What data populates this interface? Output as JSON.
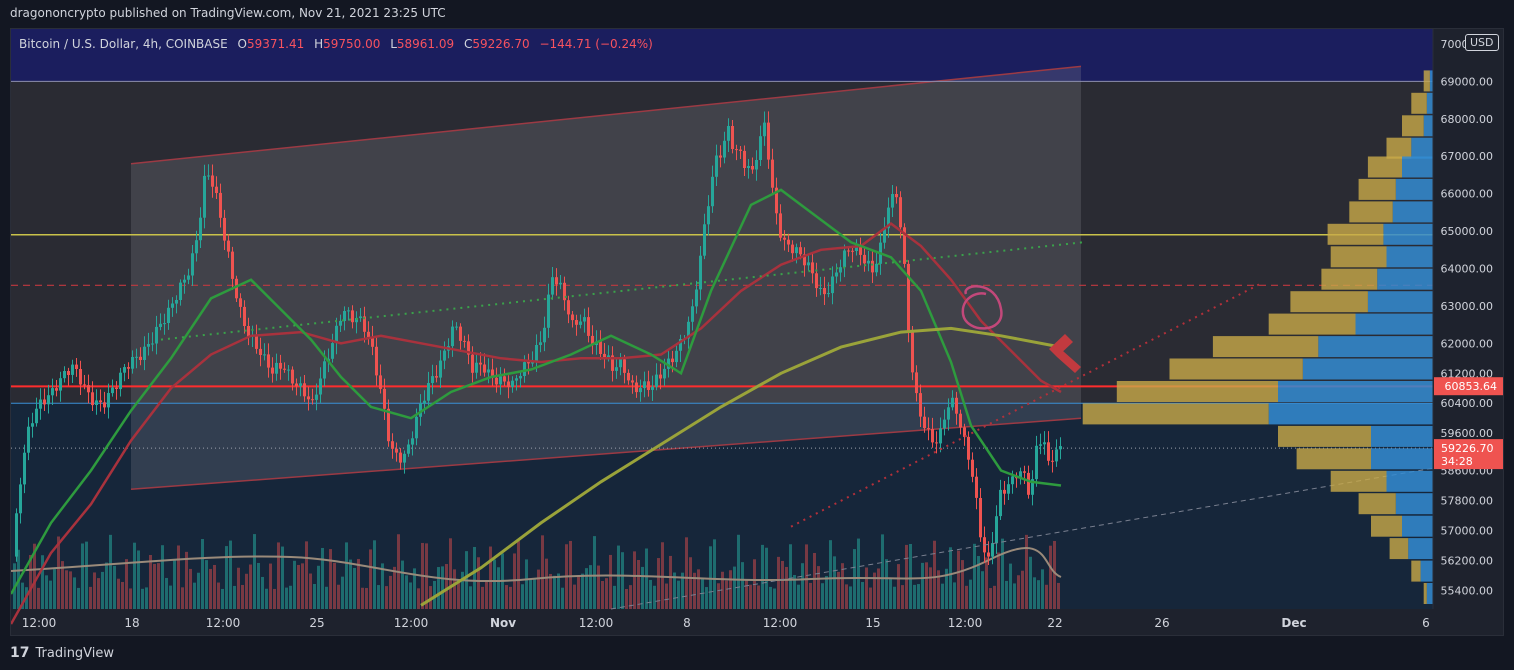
{
  "attribution": "dragononcrypto published on TradingView.com, Nov 21, 2021 23:25 UTC",
  "brand": {
    "logo_glyph": "17",
    "name": "TradingView"
  },
  "symbol_bar": {
    "symbol": "Bitcoin / U.S. Dollar, 4h, COINBASE",
    "o_label": "O",
    "o_value": "59371.41",
    "h_label": "H",
    "h_value": "59750.00",
    "l_label": "L",
    "l_value": "58961.09",
    "c_label": "C",
    "c_value": "59226.70",
    "change": "−144.71 (−0.24%)"
  },
  "currency_badge": "USD",
  "colors": {
    "bg": "#1e222d",
    "up": "#26a69a",
    "down": "#ef5350",
    "sma_green": "#2e9b3e",
    "ema_red": "#a8323d",
    "ema_olive": "#9aa33a",
    "yellow_line": "#c9c24a",
    "red_line": "#ff2d2d",
    "blue_line": "#3a8fd6",
    "price_label": "#ef5350",
    "last_label": "#ef5350"
  },
  "chart_data": {
    "type": "candlestick",
    "symbol": "Bitcoin / U.S. Dollar",
    "timeframe": "4h",
    "exchange": "COINBASE",
    "ohlc": {
      "open": 59371.41,
      "high": 59750.0,
      "low": 58961.09,
      "close": 59226.7,
      "change": -144.71,
      "change_pct": -0.24
    },
    "y_range": [
      54900,
      70400
    ],
    "y_ticks": [
      "70000.00",
      "69000.00",
      "68000.00",
      "67000.00",
      "66000.00",
      "65000.00",
      "64000.00",
      "63000.00",
      "62000.00",
      "61200.00",
      "60400.00",
      "59600.00",
      "58600.00",
      "57800.00",
      "57000.00",
      "56200.00",
      "55400.00"
    ],
    "x_ticks": [
      "12:00",
      "18",
      "12:00",
      "25",
      "12:00",
      "Nov",
      "12:00",
      "8",
      "12:00",
      "15",
      "12:00",
      "22",
      "26",
      "Dec",
      "6"
    ],
    "current_price_label": {
      "price": "59226.70",
      "countdown": "34:28"
    },
    "horizontal_level_label": "60853.64",
    "horizontal_levels": [
      {
        "name": "purple-resistance",
        "price": 69000
      },
      {
        "name": "yellow-level",
        "price": 64900
      },
      {
        "name": "dashed-red-level",
        "price": 63550
      },
      {
        "name": "red-level",
        "price": 60850
      },
      {
        "name": "blue-level",
        "price": 60400
      },
      {
        "name": "dotted-last",
        "price": 59200
      }
    ],
    "price_path": [
      [
        0,
        56300
      ],
      [
        8,
        58200
      ],
      [
        15,
        59400
      ],
      [
        22,
        60100
      ],
      [
        30,
        60600
      ],
      [
        45,
        61000
      ],
      [
        60,
        61200
      ],
      [
        75,
        60700
      ],
      [
        90,
        60500
      ],
      [
        105,
        60800
      ],
      [
        115,
        61300
      ],
      [
        125,
        61700
      ],
      [
        135,
        62100
      ],
      [
        145,
        62400
      ],
      [
        155,
        62600
      ],
      [
        162,
        63000
      ],
      [
        170,
        63600
      ],
      [
        178,
        64200
      ],
      [
        186,
        65200
      ],
      [
        193,
        66600
      ],
      [
        198,
        66400
      ],
      [
        205,
        65600
      ],
      [
        212,
        64700
      ],
      [
        220,
        63800
      ],
      [
        228,
        63000
      ],
      [
        236,
        62400
      ],
      [
        244,
        61900
      ],
      [
        252,
        61400
      ],
      [
        260,
        61100
      ],
      [
        270,
        61500
      ],
      [
        280,
        61200
      ],
      [
        290,
        60800
      ],
      [
        300,
        60200
      ],
      [
        310,
        61100
      ],
      [
        320,
        62100
      ],
      [
        330,
        63100
      ],
      [
        340,
        62700
      ],
      [
        350,
        62400
      ],
      [
        360,
        61700
      ],
      [
        370,
        60600
      ],
      [
        378,
        59400
      ],
      [
        386,
        59000
      ],
      [
        394,
        58900
      ],
      [
        402,
        59600
      ],
      [
        410,
        60400
      ],
      [
        418,
        61100
      ],
      [
        426,
        61500
      ],
      [
        434,
        62000
      ],
      [
        442,
        62400
      ],
      [
        450,
        61900
      ],
      [
        460,
        61300
      ],
      [
        470,
        61600
      ],
      [
        480,
        61200
      ],
      [
        490,
        60900
      ],
      [
        500,
        60700
      ],
      [
        510,
        61300
      ],
      [
        520,
        61800
      ],
      [
        530,
        62300
      ],
      [
        540,
        63700
      ],
      [
        550,
        63200
      ],
      [
        560,
        62500
      ],
      [
        570,
        62900
      ],
      [
        580,
        62100
      ],
      [
        590,
        61600
      ],
      [
        600,
        61200
      ],
      [
        610,
        61500
      ],
      [
        620,
        61000
      ],
      [
        630,
        60900
      ],
      [
        640,
        60700
      ],
      [
        650,
        61100
      ],
      [
        660,
        61700
      ],
      [
        670,
        62300
      ],
      [
        680,
        62900
      ],
      [
        686,
        63800
      ],
      [
        692,
        64900
      ],
      [
        698,
        66000
      ],
      [
        704,
        66900
      ],
      [
        710,
        67300
      ],
      [
        716,
        67900
      ],
      [
        722,
        67300
      ],
      [
        728,
        67100
      ],
      [
        734,
        66600
      ],
      [
        740,
        66400
      ],
      [
        746,
        67100
      ],
      [
        752,
        67800
      ],
      [
        756,
        67100
      ],
      [
        760,
        66200
      ],
      [
        766,
        65300
      ],
      [
        772,
        64800
      ],
      [
        780,
        64500
      ],
      [
        790,
        64100
      ],
      [
        800,
        63800
      ],
      [
        810,
        63400
      ],
      [
        820,
        63800
      ],
      [
        830,
        64200
      ],
      [
        840,
        64400
      ],
      [
        850,
        64300
      ],
      [
        860,
        64100
      ],
      [
        868,
        64700
      ],
      [
        876,
        65700
      ],
      [
        884,
        65800
      ],
      [
        890,
        64600
      ],
      [
        896,
        62300
      ],
      [
        902,
        60800
      ],
      [
        910,
        60100
      ],
      [
        918,
        59600
      ],
      [
        926,
        59300
      ],
      [
        934,
        60100
      ],
      [
        942,
        60300
      ],
      [
        950,
        59600
      ],
      [
        958,
        59000
      ],
      [
        964,
        57900
      ],
      [
        970,
        56600
      ],
      [
        976,
        56100
      ],
      [
        982,
        56900
      ],
      [
        988,
        57800
      ],
      [
        994,
        58100
      ],
      [
        1000,
        58400
      ],
      [
        1006,
        58800
      ],
      [
        1012,
        58600
      ],
      [
        1018,
        58000
      ],
      [
        1024,
        59100
      ],
      [
        1030,
        59400
      ],
      [
        1036,
        58600
      ],
      [
        1042,
        59000
      ],
      [
        1048,
        59227
      ]
    ],
    "sma_green": [
      [
        0,
        55300
      ],
      [
        40,
        57200
      ],
      [
        80,
        58600
      ],
      [
        120,
        60200
      ],
      [
        160,
        61600
      ],
      [
        200,
        63200
      ],
      [
        240,
        63700
      ],
      [
        270,
        62900
      ],
      [
        300,
        62100
      ],
      [
        330,
        61100
      ],
      [
        360,
        60300
      ],
      [
        400,
        60000
      ],
      [
        440,
        60700
      ],
      [
        480,
        61100
      ],
      [
        520,
        61300
      ],
      [
        560,
        61700
      ],
      [
        600,
        62200
      ],
      [
        640,
        61700
      ],
      [
        670,
        61200
      ],
      [
        700,
        63400
      ],
      [
        740,
        65700
      ],
      [
        770,
        66100
      ],
      [
        800,
        65500
      ],
      [
        840,
        64700
      ],
      [
        880,
        64300
      ],
      [
        910,
        63400
      ],
      [
        940,
        61500
      ],
      [
        960,
        59800
      ],
      [
        990,
        58600
      ],
      [
        1020,
        58300
      ],
      [
        1050,
        58200
      ]
    ],
    "ema_red": [
      [
        0,
        54500
      ],
      [
        40,
        56400
      ],
      [
        80,
        57700
      ],
      [
        120,
        59400
      ],
      [
        160,
        60800
      ],
      [
        200,
        61700
      ],
      [
        240,
        62200
      ],
      [
        290,
        62300
      ],
      [
        330,
        62000
      ],
      [
        370,
        62200
      ],
      [
        410,
        62000
      ],
      [
        450,
        61800
      ],
      [
        490,
        61600
      ],
      [
        530,
        61500
      ],
      [
        570,
        61600
      ],
      [
        610,
        61600
      ],
      [
        650,
        61700
      ],
      [
        690,
        62400
      ],
      [
        730,
        63400
      ],
      [
        770,
        64100
      ],
      [
        810,
        64500
      ],
      [
        850,
        64600
      ],
      [
        880,
        65200
      ],
      [
        910,
        64600
      ],
      [
        940,
        63700
      ],
      [
        970,
        62600
      ],
      [
        1000,
        61800
      ],
      [
        1030,
        61000
      ],
      [
        1050,
        60700
      ]
    ],
    "ema_olive": [
      [
        410,
        55000
      ],
      [
        470,
        56000
      ],
      [
        530,
        57200
      ],
      [
        590,
        58300
      ],
      [
        650,
        59300
      ],
      [
        710,
        60300
      ],
      [
        770,
        61200
      ],
      [
        830,
        61900
      ],
      [
        890,
        62300
      ],
      [
        940,
        62400
      ],
      [
        990,
        62200
      ],
      [
        1050,
        61900
      ]
    ],
    "channel": {
      "upper": [
        [
          120,
          66800
        ],
        [
          1070,
          69400
        ]
      ],
      "lower": [
        [
          120,
          58100
        ],
        [
          1070,
          60000
        ]
      ]
    },
    "volume_profile": [
      {
        "price": 69000,
        "buy": 0.02,
        "sell": 0.01
      },
      {
        "price": 68400,
        "buy": 0.05,
        "sell": 0.02
      },
      {
        "price": 67800,
        "buy": 0.07,
        "sell": 0.03
      },
      {
        "price": 67200,
        "buy": 0.08,
        "sell": 0.07
      },
      {
        "price": 66700,
        "buy": 0.11,
        "sell": 0.1
      },
      {
        "price": 66100,
        "buy": 0.12,
        "sell": 0.12
      },
      {
        "price": 65500,
        "buy": 0.14,
        "sell": 0.13
      },
      {
        "price": 64900,
        "buy": 0.18,
        "sell": 0.16
      },
      {
        "price": 64300,
        "buy": 0.18,
        "sell": 0.15
      },
      {
        "price": 63700,
        "buy": 0.18,
        "sell": 0.18
      },
      {
        "price": 63100,
        "buy": 0.25,
        "sell": 0.21
      },
      {
        "price": 62500,
        "buy": 0.28,
        "sell": 0.25
      },
      {
        "price": 61900,
        "buy": 0.34,
        "sell": 0.37
      },
      {
        "price": 61300,
        "buy": 0.43,
        "sell": 0.42
      },
      {
        "price": 60700,
        "buy": 0.52,
        "sell": 0.5
      },
      {
        "price": 60100,
        "buy": 0.6,
        "sell": 0.53
      },
      {
        "price": 59500,
        "buy": 0.3,
        "sell": 0.2
      },
      {
        "price": 58900,
        "buy": 0.24,
        "sell": 0.2
      },
      {
        "price": 58300,
        "buy": 0.18,
        "sell": 0.15
      },
      {
        "price": 57700,
        "buy": 0.12,
        "sell": 0.12
      },
      {
        "price": 57100,
        "buy": 0.1,
        "sell": 0.1
      },
      {
        "price": 56500,
        "buy": 0.06,
        "sell": 0.08
      },
      {
        "price": 55900,
        "buy": 0.03,
        "sell": 0.04
      },
      {
        "price": 55300,
        "buy": 0.01,
        "sell": 0.02
      }
    ]
  }
}
